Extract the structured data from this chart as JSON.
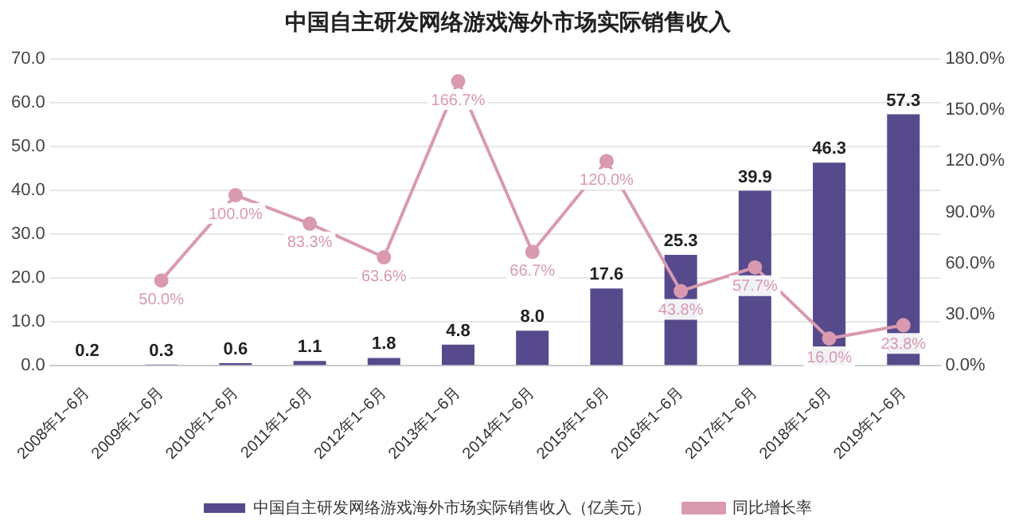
{
  "chart_data": {
    "type": "bar",
    "title": "中国自主研发网络游戏海外市场实际销售收入",
    "categories": [
      "2008年1~6月",
      "2009年1~6月",
      "2010年1~6月",
      "2011年1~6月",
      "2012年1~6月",
      "2013年1~6月",
      "2014年1~6月",
      "2015年1~6月",
      "2016年1~6月",
      "2017年1~6月",
      "2018年1~6月",
      "2019年1~6月"
    ],
    "series": [
      {
        "name": "中国自主研发网络游戏海外市场实际销售收入（亿美元）",
        "color": "#564a8c",
        "values": [
          0.2,
          0.3,
          0.6,
          1.1,
          1.8,
          4.8,
          8.0,
          17.6,
          25.3,
          39.9,
          46.3,
          57.3
        ],
        "value_labels": [
          "0.2",
          "0.3",
          "0.6",
          "1.1",
          "1.8",
          "4.8",
          "8.0",
          "17.6",
          "25.3",
          "39.9",
          "46.3",
          "57.3"
        ]
      },
      {
        "name": "同比增长率",
        "type": "line",
        "axis": "y2",
        "color": "#d99ab0",
        "values": [
          null,
          50.0,
          100.0,
          83.3,
          63.6,
          166.7,
          66.7,
          120.0,
          43.8,
          57.7,
          16.0,
          23.8
        ],
        "value_labels": [
          null,
          "50.0%",
          "100.0%",
          "83.3%",
          "63.6%",
          "166.7%",
          "66.7%",
          "120.0%",
          "43.8%",
          "57.7%",
          "16.0%",
          "23.8%"
        ]
      }
    ],
    "ylim": [
      0,
      70
    ],
    "yticks": [
      {
        "value": 0,
        "label": "0.0"
      },
      {
        "value": 10,
        "label": "10.0"
      },
      {
        "value": 20,
        "label": "20.0"
      },
      {
        "value": 30,
        "label": "30.0"
      },
      {
        "value": 40,
        "label": "40.0"
      },
      {
        "value": 50,
        "label": "50.0"
      },
      {
        "value": 60,
        "label": "60.0"
      },
      {
        "value": 70,
        "label": "70.0"
      }
    ],
    "y2lim": [
      0,
      180
    ],
    "y2ticks": [
      {
        "value": 0,
        "label": "0.0%"
      },
      {
        "value": 30,
        "label": "30.0%"
      },
      {
        "value": 60,
        "label": "60.0%"
      },
      {
        "value": 90,
        "label": "90.0%"
      },
      {
        "value": 120,
        "label": "120.0%"
      },
      {
        "value": 150,
        "label": "150.0%"
      },
      {
        "value": 180,
        "label": "180.0%"
      }
    ],
    "grid": "y",
    "legend": "bottom",
    "marker": "circle",
    "line_style": "solid"
  }
}
